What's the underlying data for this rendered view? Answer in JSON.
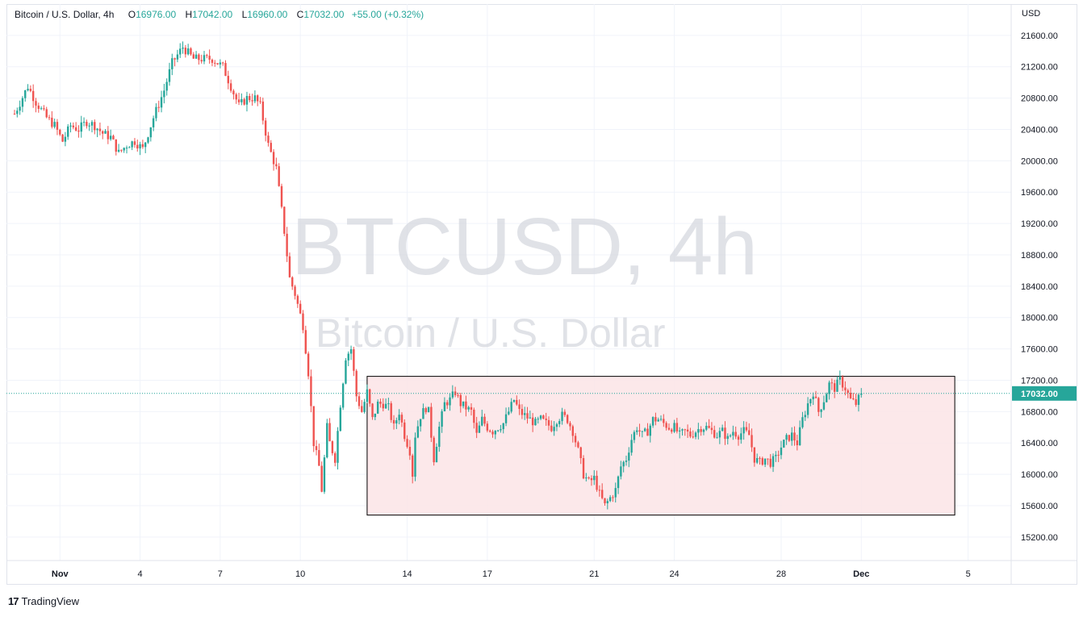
{
  "header": {
    "symbol": "Bitcoin / U.S. Dollar, 4h",
    "o_label": "O",
    "o_value": "16976.00",
    "h_label": "H",
    "h_value": "17042.00",
    "l_label": "L",
    "l_value": "16960.00",
    "c_label": "C",
    "c_value": "17032.00",
    "change": "+55.00 (+0.32%)"
  },
  "currency": "USD",
  "watermark": {
    "line1": "BTCUSD, 4h",
    "line2": "Bitcoin / U.S. Dollar"
  },
  "footer": {
    "logo_text": "17",
    "brand": "TradingView"
  },
  "colors": {
    "up": "#26a69a",
    "down": "#ef5350",
    "range_fill": "#fce4e6",
    "grid": "#f0f3fa"
  },
  "chart_data": {
    "type": "candlestick",
    "interval": "4h",
    "y_ticks": [
      15200,
      15600,
      16000,
      16400,
      16800,
      17200,
      17600,
      18000,
      18400,
      18800,
      19200,
      19600,
      20000,
      20400,
      20800,
      21200,
      21600
    ],
    "y_tick_labels": [
      "15200.00",
      "15600.00",
      "16000.00",
      "16400.00",
      "16800.00",
      "17200.00",
      "17600.00",
      "18000.00",
      "18400.00",
      "18800.00",
      "19200.00",
      "19600.00",
      "20000.00",
      "20400.00",
      "20800.00",
      "21200.00",
      "21600.00"
    ],
    "ylim": [
      14900,
      22000
    ],
    "x_tick_labels": [
      "Nov",
      "4",
      "7",
      "10",
      "14",
      "17",
      "21",
      "24",
      "28",
      "Dec",
      "5"
    ],
    "x_tick_bars": [
      17,
      47,
      77,
      107,
      147,
      177,
      217,
      247,
      287,
      317,
      357
    ],
    "bar_count": 345,
    "last_price_label": "17032.00",
    "last_price": 17032,
    "range_box": {
      "bar_start": 132,
      "bar_end": 352,
      "low": 15480,
      "high": 17250
    },
    "anchors": [
      [
        0,
        20600
      ],
      [
        5,
        20950
      ],
      [
        8,
        20750
      ],
      [
        12,
        20550
      ],
      [
        15,
        20450
      ],
      [
        18,
        20250
      ],
      [
        21,
        20450
      ],
      [
        24,
        20400
      ],
      [
        27,
        20500
      ],
      [
        30,
        20450
      ],
      [
        33,
        20350
      ],
      [
        36,
        20300
      ],
      [
        39,
        20100
      ],
      [
        42,
        20200
      ],
      [
        45,
        20250
      ],
      [
        48,
        20150
      ],
      [
        52,
        20550
      ],
      [
        56,
        20900
      ],
      [
        59,
        21250
      ],
      [
        63,
        21450
      ],
      [
        67,
        21300
      ],
      [
        71,
        21300
      ],
      [
        74,
        21300
      ],
      [
        78,
        21200
      ],
      [
        81,
        20950
      ],
      [
        84,
        20700
      ],
      [
        87,
        20800
      ],
      [
        90,
        20800
      ],
      [
        92,
        20700
      ],
      [
        95,
        20200
      ],
      [
        98,
        19900
      ],
      [
        101,
        19100
      ],
      [
        103,
        18500
      ],
      [
        105,
        18300
      ],
      [
        108,
        17900
      ],
      [
        110,
        17300
      ],
      [
        112,
        16400
      ],
      [
        114,
        16100
      ],
      [
        115,
        15800
      ],
      [
        117,
        16600
      ],
      [
        118,
        16400
      ],
      [
        120,
        16200
      ],
      [
        122,
        16900
      ],
      [
        124,
        17500
      ],
      [
        126,
        17600
      ],
      [
        128,
        17000
      ],
      [
        130,
        16800
      ],
      [
        132,
        17050
      ],
      [
        134,
        16700
      ],
      [
        136,
        16900
      ],
      [
        138,
        16900
      ],
      [
        140,
        16850
      ],
      [
        142,
        16600
      ],
      [
        144,
        16800
      ],
      [
        146,
        16500
      ],
      [
        148,
        16300
      ],
      [
        149,
        16000
      ],
      [
        150,
        16500
      ],
      [
        152,
        16750
      ],
      [
        154,
        16850
      ],
      [
        155,
        16800
      ],
      [
        157,
        16200
      ],
      [
        159,
        16600
      ],
      [
        161,
        16900
      ],
      [
        163,
        16950
      ],
      [
        165,
        17050
      ],
      [
        167,
        16900
      ],
      [
        169,
        16850
      ],
      [
        171,
        16800
      ],
      [
        173,
        16500
      ],
      [
        175,
        16700
      ],
      [
        177,
        16600
      ],
      [
        179,
        16550
      ],
      [
        181,
        16600
      ],
      [
        183,
        16650
      ],
      [
        185,
        16800
      ],
      [
        187,
        16950
      ],
      [
        189,
        16800
      ],
      [
        191,
        16750
      ],
      [
        193,
        16700
      ],
      [
        195,
        16650
      ],
      [
        197,
        16700
      ],
      [
        199,
        16650
      ],
      [
        201,
        16600
      ],
      [
        203,
        16700
      ],
      [
        205,
        16750
      ],
      [
        207,
        16700
      ],
      [
        209,
        16550
      ],
      [
        211,
        16300
      ],
      [
        213,
        16000
      ],
      [
        215,
        15900
      ],
      [
        217,
        15950
      ],
      [
        219,
        15750
      ],
      [
        221,
        15600
      ],
      [
        223,
        15700
      ],
      [
        225,
        15800
      ],
      [
        227,
        16100
      ],
      [
        229,
        16200
      ],
      [
        231,
        16450
      ],
      [
        233,
        16600
      ],
      [
        235,
        16500
      ],
      [
        237,
        16550
      ],
      [
        239,
        16700
      ],
      [
        241,
        16700
      ],
      [
        243,
        16650
      ],
      [
        245,
        16600
      ],
      [
        247,
        16600
      ],
      [
        249,
        16500
      ],
      [
        251,
        16550
      ],
      [
        253,
        16500
      ],
      [
        255,
        16550
      ],
      [
        257,
        16600
      ],
      [
        259,
        16600
      ],
      [
        261,
        16550
      ],
      [
        263,
        16500
      ],
      [
        265,
        16550
      ],
      [
        267,
        16450
      ],
      [
        269,
        16550
      ],
      [
        271,
        16500
      ],
      [
        273,
        16550
      ],
      [
        275,
        16500
      ],
      [
        277,
        16200
      ],
      [
        279,
        16150
      ],
      [
        281,
        16200
      ],
      [
        283,
        16150
      ],
      [
        285,
        16200
      ],
      [
        287,
        16350
      ],
      [
        289,
        16450
      ],
      [
        291,
        16500
      ],
      [
        293,
        16400
      ],
      [
        295,
        16700
      ],
      [
        297,
        16900
      ],
      [
        299,
        17050
      ],
      [
        301,
        16800
      ],
      [
        303,
        16950
      ],
      [
        305,
        17150
      ],
      [
        307,
        17100
      ],
      [
        309,
        17200
      ],
      [
        311,
        17100
      ],
      [
        313,
        16950
      ],
      [
        315,
        16900
      ],
      [
        317,
        17032
      ]
    ]
  }
}
